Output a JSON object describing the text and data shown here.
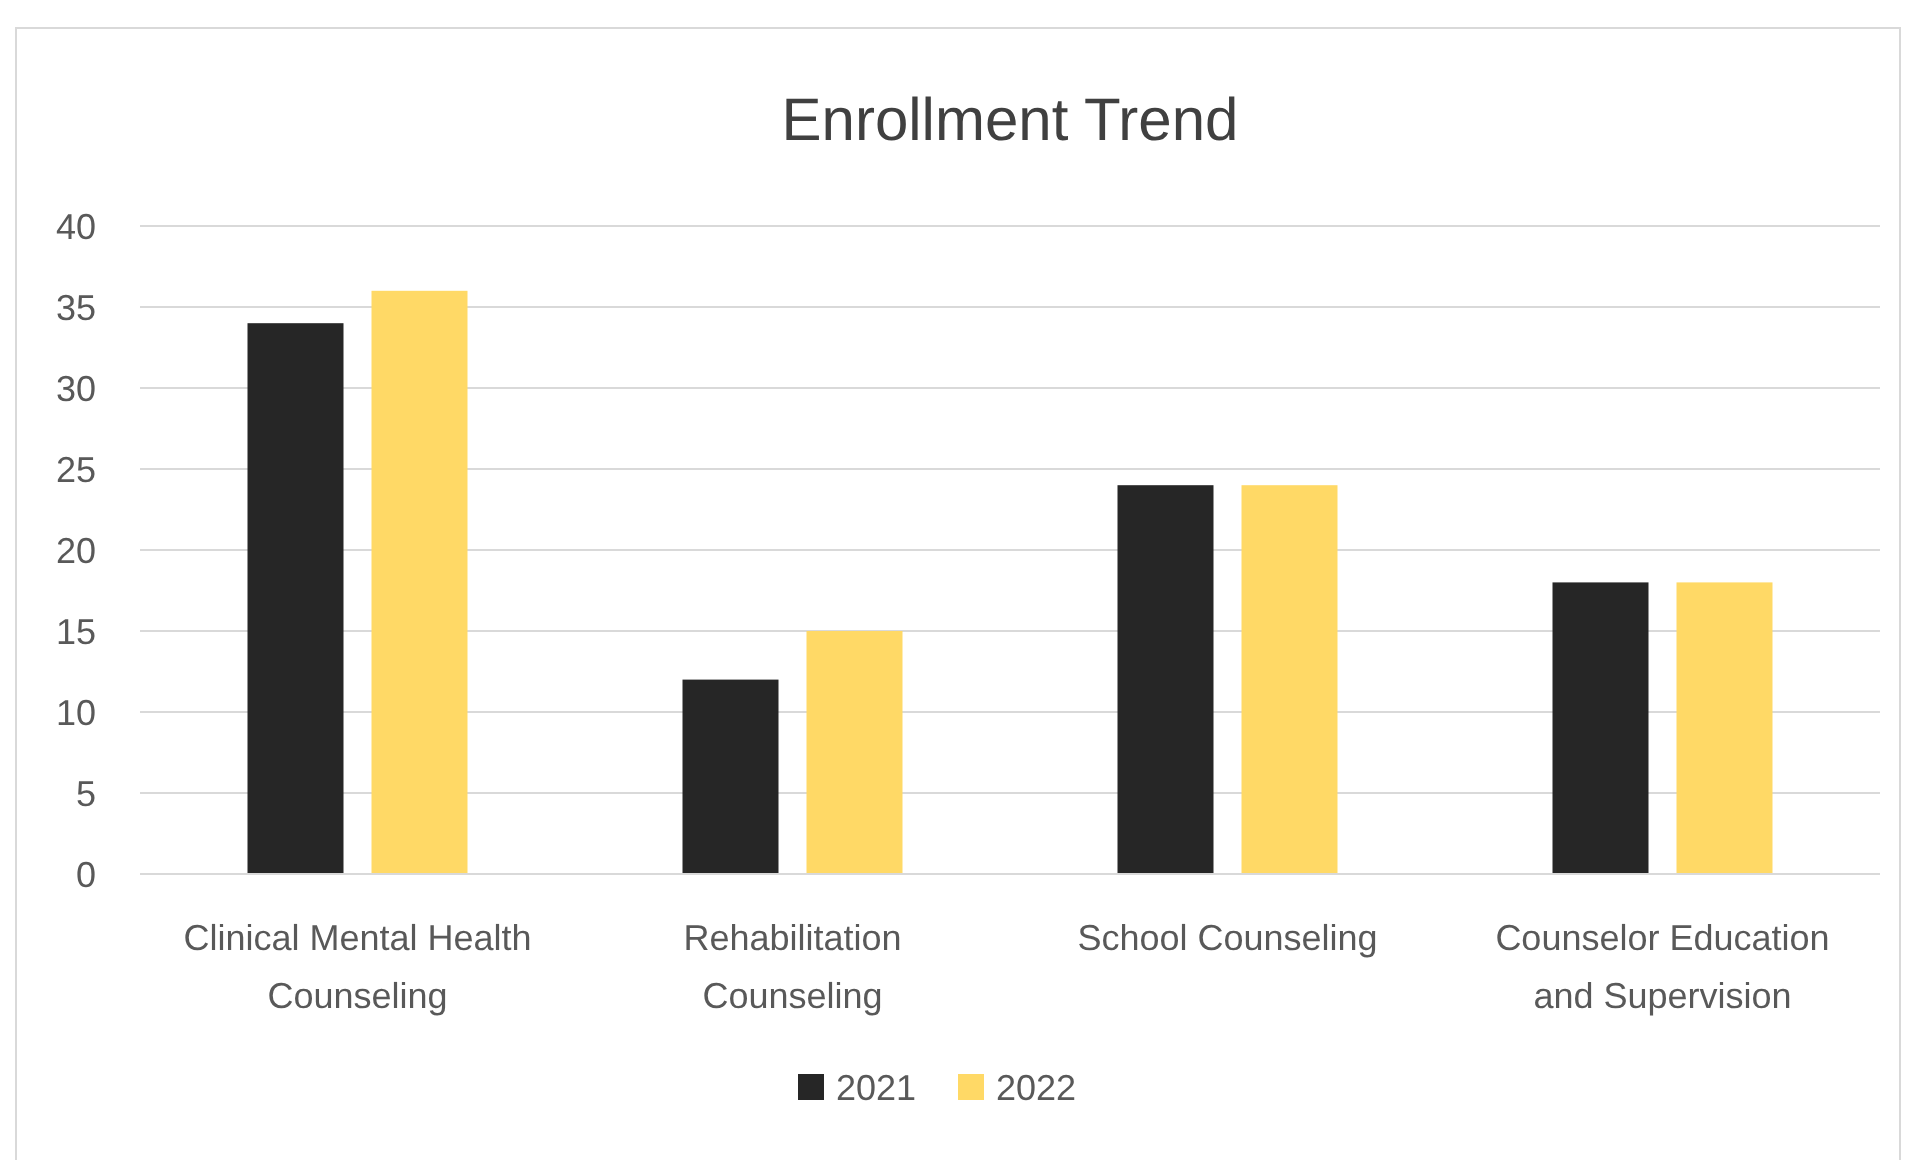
{
  "chart_data": {
    "type": "bar",
    "title": "Enrollment Trend",
    "categories": [
      "Clinical Mental Health Counseling",
      "Rehabilitation Counseling",
      "School Counseling",
      "Counselor Education and Supervision"
    ],
    "series": [
      {
        "name": "2021",
        "color": "#262626",
        "values": [
          34,
          12,
          24,
          18
        ]
      },
      {
        "name": "2022",
        "color": "#ffd966",
        "values": [
          36,
          15,
          24,
          18
        ]
      }
    ],
    "ylim": [
      0,
      40
    ],
    "yticks": [
      0,
      5,
      10,
      15,
      20,
      25,
      30,
      35,
      40
    ],
    "grid": "y",
    "legend": "bottom"
  }
}
